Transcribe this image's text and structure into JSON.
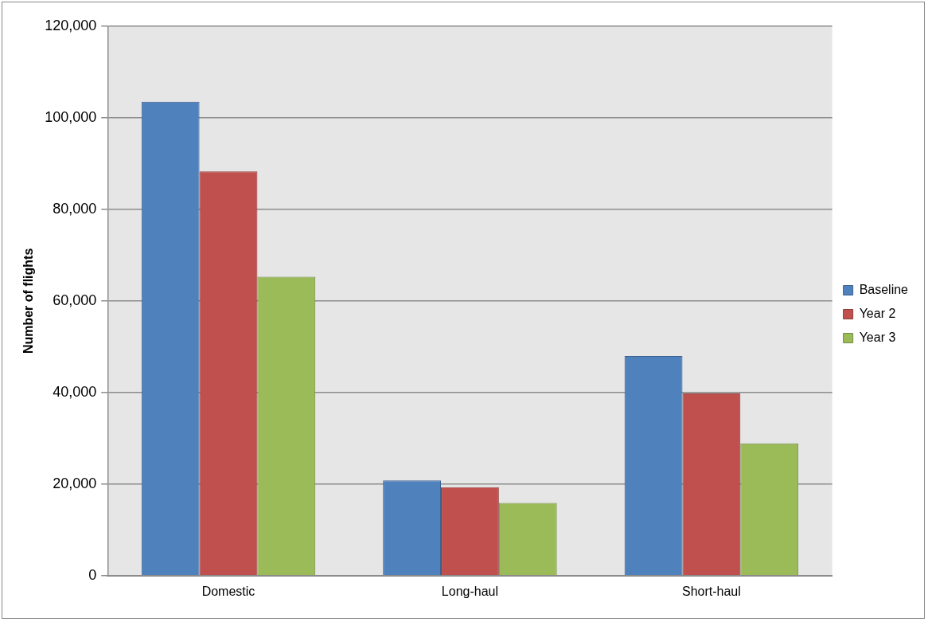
{
  "chart_data": {
    "type": "bar",
    "ylabel": "Number of flights",
    "categories": [
      "Domestic",
      "Long-haul",
      "Short-haul"
    ],
    "series": [
      {
        "name": "Baseline",
        "color": "#4f81bd",
        "values": [
          103500,
          20800,
          48000
        ]
      },
      {
        "name": "Year 2",
        "color": "#c0504d",
        "values": [
          88300,
          19300,
          39800
        ]
      },
      {
        "name": "Year 3",
        "color": "#9bbb59",
        "values": [
          65300,
          15900,
          28900
        ]
      }
    ],
    "ylim": [
      0,
      120000
    ],
    "yticks": [
      {
        "value": 0,
        "label": "0"
      },
      {
        "value": 20000,
        "label": "20,000"
      },
      {
        "value": 40000,
        "label": "40,000"
      },
      {
        "value": 60000,
        "label": "60,000"
      },
      {
        "value": 80000,
        "label": "80,000"
      },
      {
        "value": 100000,
        "label": "100,000"
      },
      {
        "value": 120000,
        "label": "120,000"
      }
    ],
    "grid": "y",
    "legend": "right"
  }
}
